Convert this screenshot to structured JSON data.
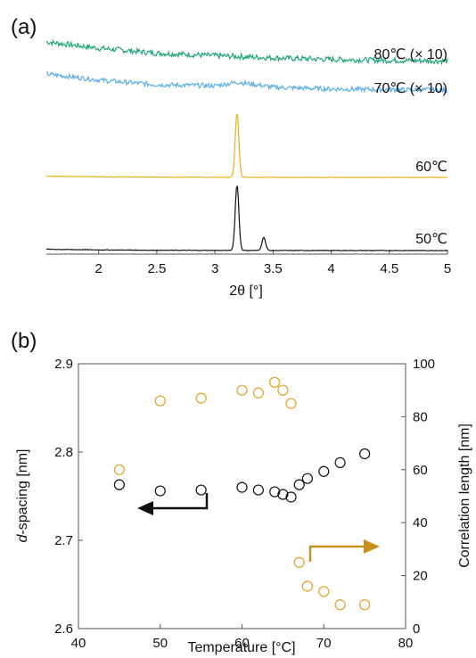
{
  "panel_a_label": "(a)",
  "panel_b_label": "(b)",
  "colors": {
    "c80": "#1fa37a",
    "c70": "#5aaee6",
    "c60": "#e6b21a",
    "c50": "#111111",
    "corr": "#e0a020",
    "dspace": "#111111",
    "arrow_right": "#c8901a"
  },
  "chart_data": [
    {
      "type": "line",
      "xlabel": "2θ [°]",
      "xlim": [
        1.55,
        5
      ],
      "x_ticks": [
        "2",
        "2.5",
        "3",
        "3.5",
        "4",
        "4.5",
        "5"
      ],
      "y_ticks_shown": false,
      "series": [
        {
          "name": "80℃ (× 10)",
          "display": "80℃  (× 10)",
          "description": "broad weak halo, no sharp peak",
          "x": [
            1.55,
            2.0,
            2.5,
            3.0,
            3.5,
            4.0,
            4.5,
            5.0
          ],
          "y": [
            1.0,
            0.75,
            0.55,
            0.45,
            0.36,
            0.3,
            0.26,
            0.24
          ]
        },
        {
          "name": "70℃ (× 10)",
          "display": "70℃  (× 10)",
          "description": "broad halo with weak hump near 3.2°",
          "x": [
            1.55,
            2.0,
            2.5,
            3.0,
            3.2,
            3.5,
            4.0,
            4.5,
            5.0
          ],
          "y": [
            1.0,
            0.72,
            0.5,
            0.45,
            0.62,
            0.38,
            0.3,
            0.27,
            0.25
          ]
        },
        {
          "name": "60℃",
          "display": "60℃",
          "description": "single sharp peak",
          "peaks": [
            {
              "x": 3.19,
              "y": 1.0
            }
          ],
          "baseline": 0.02
        },
        {
          "name": "50℃",
          "display": "50℃",
          "description": "main peak and weak secondary peak",
          "peaks": [
            {
              "x": 3.19,
              "y": 1.0
            },
            {
              "x": 3.42,
              "y": 0.2
            }
          ],
          "baseline": 0.02
        }
      ]
    },
    {
      "type": "scatter",
      "xlabel": "Temperature [°C]",
      "ylabel_left_italic": "d",
      "ylabel_left_rest": "-spacing [nm]",
      "ylabel_right": "Correlation length [nm]",
      "xlim": [
        40,
        80
      ],
      "ylim_left": [
        2.6,
        2.9
      ],
      "ylim_right": [
        0,
        100
      ],
      "x_ticks": [
        "40",
        "50",
        "60",
        "70",
        "80"
      ],
      "y_left_ticks": [
        "2.6",
        "2.7",
        "2.8",
        "2.9"
      ],
      "y_right_ticks": [
        "0",
        "20",
        "40",
        "60",
        "80",
        "100"
      ],
      "series": [
        {
          "name": "d-spacing",
          "axis": "left",
          "marker": "open-circle",
          "x": [
            45,
            50,
            55,
            60,
            62,
            64,
            65,
            66,
            67,
            68,
            70,
            72,
            75
          ],
          "y": [
            2.763,
            2.756,
            2.757,
            2.76,
            2.757,
            2.755,
            2.752,
            2.749,
            2.763,
            2.77,
            2.778,
            2.788,
            2.798
          ]
        },
        {
          "name": "Correlation length",
          "axis": "right",
          "marker": "open-circle",
          "x": [
            45,
            50,
            55,
            60,
            62,
            64,
            65,
            66,
            67,
            68,
            70,
            72,
            75
          ],
          "y": [
            60,
            86,
            87,
            90,
            89,
            93,
            90,
            85,
            25,
            16,
            14,
            9,
            9
          ]
        }
      ],
      "annotations": [
        "left arrow near d-spacing points pointing to left axis",
        "right arrow near correlation length points pointing to right axis"
      ]
    }
  ]
}
